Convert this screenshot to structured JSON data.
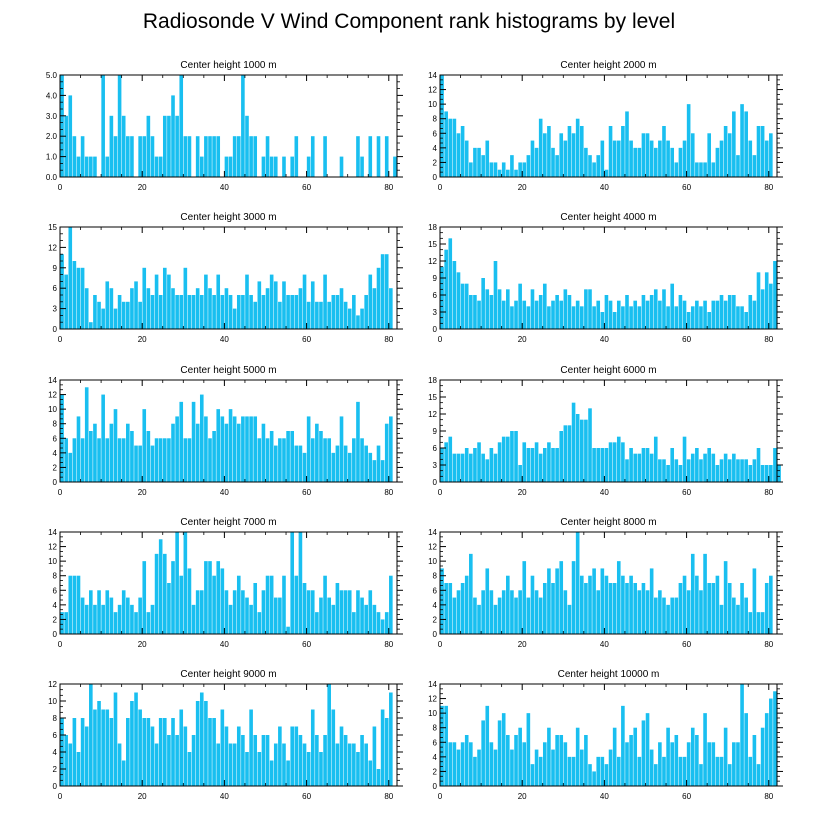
{
  "page": {
    "title": "Radiosonde V Wind Component rank histograms by level"
  },
  "chart_data": [
    {
      "type": "bar",
      "title": "Center height 1000 m",
      "xticks": [
        0,
        20,
        40,
        60,
        80
      ],
      "ylim": [
        0,
        5
      ],
      "yticks": [
        "0.0",
        "1.0",
        "2.0",
        "3.0",
        "4.0",
        "5.0"
      ],
      "ytick_values": [
        0,
        1,
        2,
        3,
        4,
        5
      ],
      "bar_color": "#19bff0",
      "values": [
        5,
        3,
        4,
        2,
        1,
        2,
        1,
        1,
        1,
        0,
        5,
        1,
        3,
        2,
        5,
        3,
        2,
        2,
        0,
        2,
        2,
        3,
        2,
        1,
        1,
        3,
        3,
        4,
        3,
        5,
        2,
        2,
        0,
        2,
        1,
        2,
        2,
        2,
        2,
        0,
        1,
        1,
        2,
        2,
        5,
        3,
        2,
        2,
        0,
        1,
        2,
        1,
        1,
        0,
        1,
        0,
        1,
        2,
        0,
        0,
        1,
        2,
        0,
        0,
        2,
        0,
        0,
        0,
        1,
        0,
        0,
        0,
        2,
        1,
        0,
        2,
        0,
        2,
        0,
        2,
        0,
        1
      ]
    },
    {
      "type": "bar",
      "title": "Center height 2000 m",
      "xticks": [
        0,
        20,
        40,
        60,
        80
      ],
      "ylim": [
        0,
        14
      ],
      "yticks": [
        "0",
        "2",
        "4",
        "6",
        "8",
        "10",
        "12",
        "14"
      ],
      "ytick_values": [
        0,
        2,
        4,
        6,
        8,
        10,
        12,
        14
      ],
      "bar_color": "#19bff0",
      "values": [
        14,
        9,
        8,
        8,
        6,
        7,
        5,
        2,
        4,
        4,
        3,
        5,
        2,
        2,
        1,
        2,
        1,
        3,
        1,
        2,
        2,
        3,
        5,
        4,
        8,
        6,
        7,
        4,
        3,
        6,
        5,
        7,
        6,
        8,
        7,
        4,
        3,
        2,
        3,
        5,
        1,
        7,
        5,
        5,
        7,
        9,
        5,
        4,
        4,
        6,
        6,
        5,
        4,
        5,
        7,
        5,
        4,
        2,
        4,
        5,
        10,
        6,
        2,
        2,
        2,
        6,
        2,
        4,
        5,
        7,
        6,
        9,
        3,
        10,
        9,
        5,
        3,
        7,
        7,
        5,
        6,
        0
      ]
    },
    {
      "type": "bar",
      "title": "Center height 3000 m",
      "xticks": [
        0,
        20,
        40,
        60,
        80
      ],
      "ylim": [
        0,
        15
      ],
      "yticks": [
        "0",
        "3",
        "6",
        "9",
        "12",
        "15"
      ],
      "ytick_values": [
        0,
        3,
        6,
        9,
        12,
        15
      ],
      "bar_color": "#19bff0",
      "values": [
        11,
        8,
        15,
        10,
        9,
        9,
        6,
        1,
        5,
        4,
        3,
        7,
        6,
        3,
        5,
        4,
        4,
        6,
        7,
        4,
        9,
        6,
        5,
        8,
        5,
        9,
        8,
        6,
        5,
        5,
        9,
        5,
        5,
        6,
        5,
        8,
        6,
        5,
        8,
        5,
        6,
        5,
        3,
        5,
        5,
        8,
        5,
        4,
        7,
        5,
        6,
        8,
        7,
        4,
        7,
        5,
        5,
        5,
        6,
        8,
        4,
        7,
        4,
        4,
        8,
        4,
        5,
        5,
        6,
        4,
        3,
        5,
        2,
        3,
        5,
        8,
        6,
        9,
        11,
        11,
        6,
        0
      ]
    },
    {
      "type": "bar",
      "title": "Center height 4000 m",
      "xticks": [
        0,
        20,
        40,
        60,
        80
      ],
      "ylim": [
        0,
        18
      ],
      "yticks": [
        "0",
        "3",
        "6",
        "9",
        "12",
        "15",
        "18"
      ],
      "ytick_values": [
        0,
        3,
        6,
        9,
        12,
        15,
        18
      ],
      "bar_color": "#19bff0",
      "values": [
        11,
        14,
        16,
        12,
        10,
        8,
        8,
        6,
        6,
        5,
        9,
        7,
        6,
        12,
        7,
        5,
        7,
        4,
        5,
        8,
        5,
        4,
        7,
        5,
        6,
        8,
        4,
        5,
        6,
        5,
        7,
        6,
        4,
        5,
        4,
        7,
        7,
        4,
        5,
        3,
        6,
        5,
        3,
        5,
        4,
        6,
        4,
        5,
        4,
        6,
        5,
        6,
        7,
        5,
        7,
        4,
        8,
        4,
        6,
        5,
        3,
        4,
        5,
        4,
        5,
        3,
        5,
        5,
        6,
        5,
        6,
        6,
        4,
        4,
        3,
        6,
        5,
        10,
        7,
        10,
        8,
        12
      ]
    },
    {
      "type": "bar",
      "title": "Center height 5000 m",
      "xticks": [
        0,
        20,
        40,
        60,
        80
      ],
      "ylim": [
        0,
        14
      ],
      "yticks": [
        "0",
        "2",
        "4",
        "6",
        "8",
        "10",
        "12",
        "14"
      ],
      "ytick_values": [
        0,
        2,
        4,
        6,
        8,
        10,
        12,
        14
      ],
      "bar_color": "#19bff0",
      "values": [
        12,
        6,
        4,
        6,
        9,
        6,
        13,
        7,
        8,
        6,
        12,
        6,
        8,
        10,
        6,
        6,
        8,
        7,
        5,
        5,
        10,
        7,
        5,
        6,
        6,
        6,
        6,
        8,
        9,
        11,
        6,
        6,
        11,
        8,
        12,
        9,
        6,
        7,
        10,
        9,
        8,
        10,
        9,
        8,
        9,
        9,
        9,
        9,
        6,
        8,
        6,
        7,
        5,
        6,
        6,
        7,
        7,
        5,
        5,
        4,
        9,
        6,
        8,
        7,
        6,
        6,
        4,
        5,
        9,
        5,
        4,
        6,
        11,
        6,
        5,
        4,
        3,
        5,
        3,
        8,
        9,
        0
      ]
    },
    {
      "type": "bar",
      "title": "Center height 6000 m",
      "xticks": [
        0,
        20,
        40,
        60,
        80
      ],
      "ylim": [
        0,
        18
      ],
      "yticks": [
        "0",
        "3",
        "6",
        "9",
        "12",
        "15",
        "18"
      ],
      "ytick_values": [
        0,
        3,
        6,
        9,
        12,
        15,
        18
      ],
      "bar_color": "#19bff0",
      "values": [
        6,
        7,
        8,
        5,
        5,
        5,
        6,
        5,
        6,
        7,
        5,
        4,
        6,
        5,
        7,
        8,
        8,
        9,
        9,
        3,
        7,
        6,
        6,
        7,
        5,
        6,
        7,
        6,
        6,
        9,
        10,
        10,
        14,
        12,
        11,
        11,
        13,
        6,
        6,
        6,
        6,
        7,
        7,
        8,
        7,
        4,
        6,
        5,
        5,
        6,
        6,
        5,
        8,
        4,
        4,
        3,
        6,
        4,
        3,
        8,
        4,
        5,
        6,
        4,
        5,
        6,
        5,
        3,
        4,
        5,
        4,
        5,
        4,
        4,
        4,
        3,
        4,
        6,
        3,
        3,
        3,
        6,
        3,
        0
      ]
    },
    {
      "type": "bar",
      "title": "Center height 7000 m",
      "xticks": [
        0,
        20,
        40,
        60,
        80
      ],
      "ylim": [
        0,
        14
      ],
      "yticks": [
        "0",
        "2",
        "4",
        "6",
        "8",
        "10",
        "12",
        "14"
      ],
      "ytick_values": [
        0,
        2,
        4,
        6,
        8,
        10,
        12,
        14
      ],
      "bar_color": "#19bff0",
      "values": [
        3,
        3,
        8,
        8,
        8,
        5,
        4,
        6,
        4,
        6,
        4,
        6,
        5,
        3,
        4,
        6,
        5,
        4,
        3,
        5,
        10,
        3,
        4,
        11,
        13,
        11,
        7,
        10,
        14,
        8,
        14,
        9,
        4,
        6,
        6,
        10,
        10,
        8,
        10,
        9,
        6,
        4,
        6,
        8,
        6,
        5,
        4,
        7,
        3,
        6,
        8,
        8,
        5,
        5,
        8,
        1,
        14,
        8,
        14,
        7,
        6,
        6,
        3,
        5,
        8,
        5,
        4,
        7,
        6,
        6,
        6,
        3,
        6,
        5,
        4,
        6,
        4,
        3,
        2,
        3,
        8,
        0
      ]
    },
    {
      "type": "bar",
      "title": "Center height 8000 m",
      "xticks": [
        0,
        20,
        40,
        60,
        80
      ],
      "ylim": [
        0,
        14
      ],
      "yticks": [
        "0",
        "2",
        "4",
        "6",
        "8",
        "10",
        "12",
        "14"
      ],
      "ytick_values": [
        0,
        2,
        4,
        6,
        8,
        10,
        12,
        14
      ],
      "bar_color": "#19bff0",
      "values": [
        9,
        7,
        7,
        5,
        6,
        7,
        8,
        11,
        5,
        4,
        6,
        9,
        6,
        4,
        5,
        6,
        8,
        6,
        5,
        6,
        10,
        5,
        8,
        6,
        5,
        7,
        9,
        7,
        9,
        10,
        6,
        4,
        10,
        14,
        8,
        7,
        8,
        9,
        6,
        9,
        8,
        7,
        7,
        10,
        8,
        7,
        8,
        7,
        6,
        7,
        6,
        9,
        5,
        6,
        5,
        4,
        5,
        5,
        7,
        8,
        6,
        11,
        8,
        6,
        11,
        7,
        7,
        8,
        4,
        10,
        7,
        5,
        4,
        7,
        5,
        3,
        9,
        3,
        3,
        7,
        8,
        0
      ]
    },
    {
      "type": "bar",
      "title": "Center height 9000 m",
      "xticks": [
        0,
        20,
        40,
        60,
        80
      ],
      "ylim": [
        0,
        12
      ],
      "yticks": [
        "0",
        "2",
        "4",
        "6",
        "8",
        "10",
        "12"
      ],
      "ytick_values": [
        0,
        2,
        4,
        6,
        8,
        10,
        12
      ],
      "bar_color": "#19bff0",
      "values": [
        8,
        6,
        5,
        8,
        4,
        8,
        7,
        12,
        9,
        10,
        9,
        9,
        8,
        11,
        5,
        3,
        8,
        10,
        11,
        9,
        8,
        8,
        7,
        5,
        8,
        8,
        6,
        8,
        6,
        9,
        7,
        4,
        6,
        10,
        11,
        10,
        8,
        8,
        5,
        9,
        7,
        5,
        5,
        7,
        6,
        4,
        9,
        6,
        4,
        6,
        6,
        3,
        5,
        7,
        5,
        3,
        7,
        7,
        6,
        5,
        4,
        9,
        6,
        4,
        6,
        12,
        9,
        5,
        7,
        6,
        5,
        5,
        4,
        6,
        5,
        3,
        7,
        2,
        9,
        8,
        11,
        0
      ]
    },
    {
      "type": "bar",
      "title": "Center height 10000 m",
      "xticks": [
        0,
        20,
        40,
        60,
        80
      ],
      "ylim": [
        0,
        14
      ],
      "yticks": [
        "0",
        "2",
        "4",
        "6",
        "8",
        "10",
        "12",
        "14"
      ],
      "ytick_values": [
        0,
        2,
        4,
        6,
        8,
        10,
        12,
        14
      ],
      "bar_color": "#19bff0",
      "values": [
        11,
        11,
        6,
        6,
        5,
        6,
        7,
        6,
        4,
        5,
        9,
        11,
        6,
        5,
        9,
        10,
        7,
        5,
        7,
        8,
        6,
        10,
        3,
        5,
        4,
        6,
        8,
        5,
        7,
        7,
        6,
        4,
        4,
        8,
        5,
        7,
        3,
        2,
        4,
        4,
        3,
        5,
        8,
        4,
        11,
        6,
        7,
        8,
        4,
        9,
        10,
        5,
        3,
        6,
        4,
        8,
        6,
        7,
        4,
        4,
        6,
        8,
        7,
        3,
        10,
        6,
        6,
        4,
        4,
        8,
        3,
        6,
        6,
        14,
        10,
        4,
        7,
        3,
        8,
        10,
        12,
        13
      ]
    }
  ]
}
